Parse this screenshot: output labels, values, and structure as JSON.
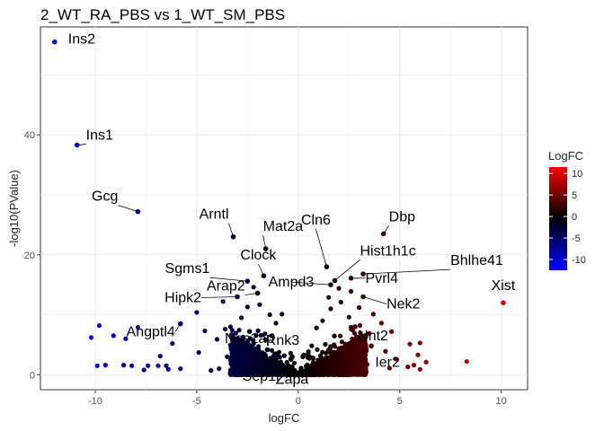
{
  "chart_data": {
    "type": "scatter",
    "title": "2_WT_RA_PBS vs 1_WT_SM_PBS",
    "xlabel": "logFC",
    "ylabel": "-log10(PValue)",
    "xlim": [
      -12.7,
      11.3
    ],
    "ylim": [
      -2.5,
      58
    ],
    "x_ticks": [
      -10,
      -5,
      0,
      5,
      10
    ],
    "y_ticks": [
      0,
      20,
      40
    ],
    "grid": true,
    "legend": {
      "title": "LogFC",
      "placement": "right",
      "ticks": [
        10,
        5,
        0,
        -5,
        -10
      ],
      "range": [
        -12.5,
        11.5
      ],
      "colors": {
        "low": "#0000ff",
        "mid": "#000000",
        "high": "#ff0000"
      }
    },
    "labeled_points": [
      {
        "gene": "Ins2",
        "x": -12.0,
        "y": 55.5
      },
      {
        "gene": "Ins1",
        "x": -10.9,
        "y": 38.3
      },
      {
        "gene": "Gcg",
        "x": -7.9,
        "y": 27.2
      },
      {
        "gene": "Arntl",
        "x": -3.2,
        "y": 23.0
      },
      {
        "gene": "Mat2a",
        "x": -1.6,
        "y": 21.0
      },
      {
        "gene": "Clock",
        "x": -1.7,
        "y": 16.5
      },
      {
        "gene": "Sgms1",
        "x": -2.5,
        "y": 15.6
      },
      {
        "gene": "Arap2",
        "x": -2.0,
        "y": 13.6
      },
      {
        "gene": "Hipk2",
        "x": -3.0,
        "y": 13.0
      },
      {
        "gene": "Angptl4",
        "x": -5.8,
        "y": 8.5
      },
      {
        "gene": "Nos1ap",
        "x": -2.4,
        "y": 7.2
      },
      {
        "gene": "Rnk3",
        "x": -1.3,
        "y": 6.5
      },
      {
        "gene": "Sep1l",
        "x": -2.2,
        "y": 3.5
      },
      {
        "gene": "Zapa",
        "x": -0.3,
        "y": 3.0
      },
      {
        "gene": "Cln6",
        "x": 1.4,
        "y": 18.0
      },
      {
        "gene": "Ampd3",
        "x": 1.6,
        "y": 15.0
      },
      {
        "gene": "Hist1h1c",
        "x": 1.8,
        "y": 15.7
      },
      {
        "gene": "Dbp",
        "x": 4.2,
        "y": 23.5
      },
      {
        "gene": "Bhlhe41",
        "x": 3.2,
        "y": 16.8
      },
      {
        "gene": "Pvrl4",
        "x": 2.6,
        "y": 16.1
      },
      {
        "gene": "Nek2",
        "x": 3.2,
        "y": 13.0
      },
      {
        "gene": "Xist",
        "x": 10.1,
        "y": 12.0
      },
      {
        "gene": "Nnt2",
        "x": 2.8,
        "y": 8.0
      },
      {
        "gene": "Ier2",
        "x": 3.6,
        "y": 4.8
      }
    ],
    "other_points": [
      [
        -9.8,
        8.2
      ],
      [
        -10.2,
        6.2
      ],
      [
        -8.5,
        6.0
      ],
      [
        -9.1,
        6.5
      ],
      [
        -7.9,
        7.9
      ],
      [
        -9.9,
        1.5
      ],
      [
        -9.5,
        1.6
      ],
      [
        -8.6,
        1.6
      ],
      [
        -8.2,
        1.5
      ],
      [
        -6.9,
        1.5
      ],
      [
        -6.5,
        1.5
      ],
      [
        -7.4,
        1.5
      ],
      [
        -7.6,
        0.8
      ],
      [
        -6.8,
        3.1
      ],
      [
        -6.2,
        5.2
      ],
      [
        -6.4,
        0.9
      ],
      [
        -5.8,
        1.0
      ],
      [
        -5.0,
        10.4
      ],
      [
        -4.6,
        7.3
      ],
      [
        -4.9,
        3.7
      ],
      [
        -4.3,
        0.7
      ],
      [
        -3.9,
        1.0
      ],
      [
        -3.5,
        3.0
      ],
      [
        -3.3,
        4.8
      ],
      [
        -2.8,
        9.5
      ],
      [
        -4.0,
        5.9
      ],
      [
        -3.6,
        7.6
      ],
      [
        -3.7,
        12.2
      ],
      [
        -2.5,
        11.3
      ],
      [
        -1.9,
        11.7
      ],
      [
        -2.2,
        14.6
      ],
      [
        -1.4,
        10.0
      ],
      [
        -1.1,
        8.6
      ],
      [
        -0.8,
        10.1
      ],
      [
        5.5,
        5.1
      ],
      [
        6.0,
        5.3
      ],
      [
        5.9,
        3.3
      ],
      [
        6.3,
        2.1
      ],
      [
        5.7,
        1.6
      ],
      [
        5.4,
        1.3
      ],
      [
        6.0,
        0.9
      ],
      [
        8.3,
        2.2
      ],
      [
        4.6,
        7.2
      ],
      [
        4.1,
        8.6
      ],
      [
        3.7,
        10.1
      ],
      [
        3.5,
        6.9
      ],
      [
        3.0,
        11.2
      ],
      [
        2.5,
        9.6
      ],
      [
        2.1,
        12.1
      ],
      [
        1.6,
        11.0
      ],
      [
        1.2,
        9.0
      ],
      [
        0.9,
        7.8
      ],
      [
        2.6,
        13.9
      ],
      [
        2.0,
        14.4
      ],
      [
        1.5,
        12.9
      ],
      [
        4.3,
        3.9
      ],
      [
        4.8,
        2.6
      ],
      [
        4.5,
        1.1
      ],
      [
        3.4,
        1.7
      ]
    ]
  }
}
